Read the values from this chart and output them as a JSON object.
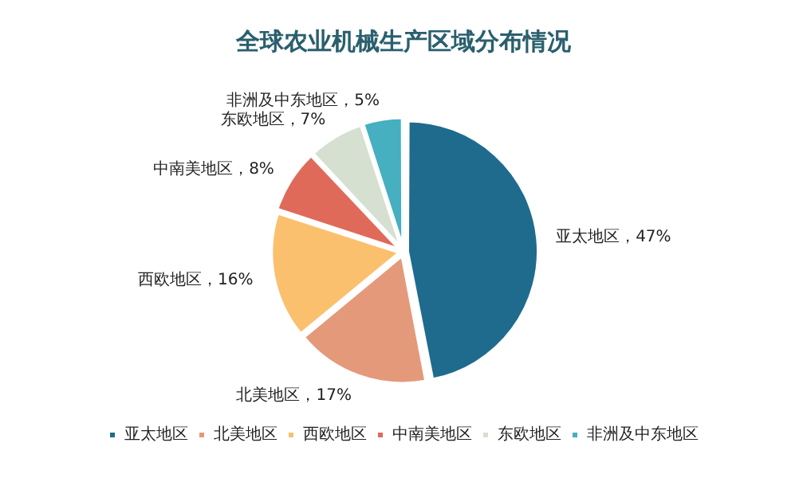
{
  "chart_data": {
    "type": "pie",
    "title": "全球农业机械生产区域分布情况",
    "categories": [
      "亚太地区",
      "北美地区",
      "西欧地区",
      "中南美地区",
      "东欧地区",
      "非洲及中东地区"
    ],
    "values": [
      47,
      17,
      16,
      8,
      7,
      5
    ],
    "value_labels": [
      "，47%",
      "，17%",
      "，16%",
      "，8%",
      "，7%",
      "，5%"
    ],
    "colors": [
      "#1f6b8e",
      "#e49a7a",
      "#fbc06e",
      "#e06a5a",
      "#d5e0d0",
      "#46afc0"
    ],
    "legend": "bottom"
  }
}
